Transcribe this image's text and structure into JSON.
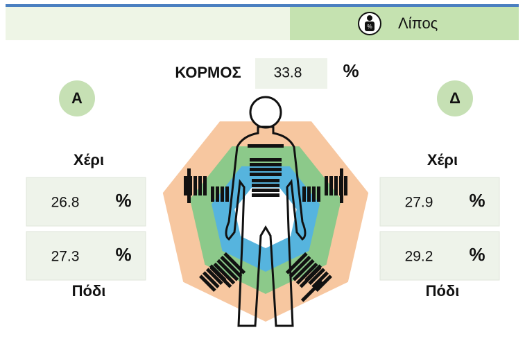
{
  "header": {
    "tab": "Λίπος",
    "icon_label": "%"
  },
  "trunk": {
    "label": "ΚΟΡΜΟΣ",
    "value": 33.8,
    "unit": "%"
  },
  "left": {
    "side": "Α",
    "arm": {
      "label": "Χέρι",
      "value": 26.8,
      "unit": "%"
    },
    "leg": {
      "label": "Πόδι",
      "value": 27.3,
      "unit": "%"
    }
  },
  "right": {
    "side": "Δ",
    "arm": {
      "label": "Χέρι",
      "value": 27.9,
      "unit": "%"
    },
    "leg": {
      "label": "Πόδι",
      "value": 29.2,
      "unit": "%"
    }
  }
}
